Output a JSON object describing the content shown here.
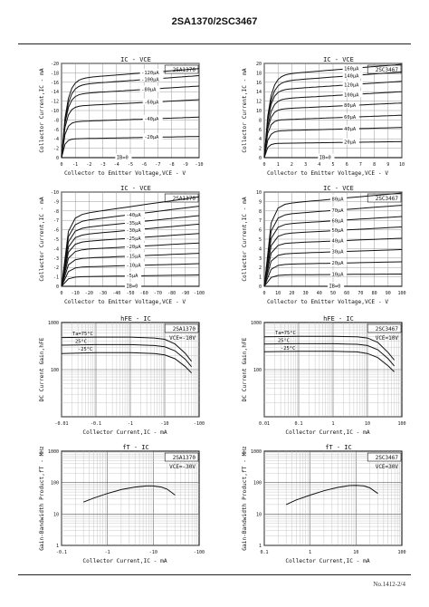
{
  "page": {
    "header_title": "2SA1370/2SC3467",
    "footer_text": "No.1412-2/4"
  },
  "chart_data": [
    {
      "id": "c1",
      "type": "line",
      "device": "2SA1370",
      "title": "IC - VCE",
      "xlabel": "Collector to Emitter Voltage,VCE - V",
      "ylabel": "Collector Current,IC - mA",
      "xlim": [
        0,
        -10
      ],
      "ylim": [
        0,
        -20
      ],
      "xticks": [
        0,
        -1,
        -2,
        -3,
        -4,
        -5,
        -6,
        -7,
        -8,
        -9,
        -10
      ],
      "yticks": [
        0,
        -2,
        -4,
        -6,
        -8,
        -10,
        -12,
        -14,
        -16,
        -18,
        -20
      ],
      "xticklabels": [
        "0",
        "-1",
        "-2",
        "-3",
        "-4",
        "-5",
        "-6",
        "-7",
        "-8",
        "-9",
        "-10"
      ],
      "yticklabels": [
        "0",
        "-2",
        "-4",
        "-6",
        "-8",
        "-10",
        "-12",
        "-14",
        "-16",
        "-18",
        "-20"
      ],
      "grid": true,
      "curve_model": "saturation",
      "series": [
        {
          "name": "-120μA",
          "sat_knee": 0.9,
          "y_at_xmax": -18.9
        },
        {
          "name": "-100μA",
          "sat_knee": 0.9,
          "y_at_xmax": -17.4
        },
        {
          "name": "-80μA",
          "sat_knee": 0.8,
          "y_at_xmax": -15.2
        },
        {
          "name": "-60μA",
          "sat_knee": 0.7,
          "y_at_xmax": -12.3
        },
        {
          "name": "-40μA",
          "sat_knee": 0.6,
          "y_at_xmax": -8.6
        },
        {
          "name": "-20μA",
          "sat_knee": 0.5,
          "y_at_xmax": -4.5
        },
        {
          "name": "IB=0",
          "sat_knee": 0.1,
          "y_at_xmax": 0
        }
      ],
      "label_at_x": [
        -5.8,
        -5.8,
        -5.8,
        -6.0,
        -6.0,
        -6.0,
        -4.0
      ],
      "label_series": [
        0,
        1,
        2,
        3,
        4,
        5,
        6
      ]
    },
    {
      "id": "c2",
      "type": "line",
      "device": "2SC3467",
      "title": "IC - VCE",
      "xlabel": "Collector to Emitter Voltage,VCE - V",
      "ylabel": "Collector Current,IC - mA",
      "xlim": [
        0,
        10
      ],
      "ylim": [
        0,
        20
      ],
      "xticks": [
        0,
        1,
        2,
        3,
        4,
        5,
        6,
        7,
        8,
        9,
        10
      ],
      "yticks": [
        0,
        2,
        4,
        6,
        8,
        10,
        12,
        14,
        16,
        18,
        20
      ],
      "xticklabels": [
        "0",
        "1",
        "2",
        "3",
        "4",
        "5",
        "6",
        "7",
        "8",
        "9",
        "10"
      ],
      "yticklabels": [
        "0",
        "2",
        "4",
        "6",
        "8",
        "10",
        "12",
        "14",
        "16",
        "18",
        "20"
      ],
      "grid": true,
      "curve_model": "saturation",
      "series": [
        {
          "name": "160μA",
          "sat_knee": 0.9,
          "y_at_xmax": 19.8
        },
        {
          "name": "140μA",
          "sat_knee": 0.9,
          "y_at_xmax": 18.2
        },
        {
          "name": "120μA",
          "sat_knee": 0.8,
          "y_at_xmax": 16.2
        },
        {
          "name": "100μA",
          "sat_knee": 0.8,
          "y_at_xmax": 14.0
        },
        {
          "name": "80μA",
          "sat_knee": 0.7,
          "y_at_xmax": 11.6
        },
        {
          "name": "60μA",
          "sat_knee": 0.6,
          "y_at_xmax": 9.0
        },
        {
          "name": "40μA",
          "sat_knee": 0.6,
          "y_at_xmax": 6.4
        },
        {
          "name": "20μA",
          "sat_knee": 0.5,
          "y_at_xmax": 3.4
        },
        {
          "name": "IB=0",
          "sat_knee": 0.1,
          "y_at_xmax": 0
        }
      ],
      "label_at_x": [
        5.8,
        5.8,
        5.8,
        5.8,
        5.8,
        5.8,
        5.8,
        5.8,
        4.0
      ],
      "label_series": [
        0,
        1,
        2,
        3,
        4,
        5,
        6,
        7,
        8
      ]
    },
    {
      "id": "c3",
      "type": "line",
      "device": "2SA1370",
      "title": "IC - VCE",
      "xlabel": "Collector to Emitter Voltage,VCE - V",
      "ylabel": "Collector Current,IC - mA",
      "xlim": [
        0,
        -100
      ],
      "ylim": [
        0,
        -10
      ],
      "xticks": [
        0,
        -10,
        -20,
        -30,
        -40,
        -50,
        -60,
        -70,
        -80,
        -90,
        -100
      ],
      "yticks": [
        0,
        -1,
        -2,
        -3,
        -4,
        -5,
        -6,
        -7,
        -8,
        -9,
        -10
      ],
      "xticklabels": [
        "0",
        "-10",
        "-20",
        "-30",
        "-40",
        "-50",
        "-60",
        "-70",
        "-80",
        "-90",
        "-100"
      ],
      "yticklabels": [
        "0",
        "-1",
        "-2",
        "-3",
        "-4",
        "-5",
        "-6",
        "-7",
        "-8",
        "-9",
        "-10"
      ],
      "grid": true,
      "curve_model": "linear",
      "series": [
        {
          "name": "",
          "y_start": -7.4,
          "y_end": -9.5
        },
        {
          "name": "-40μA",
          "y_start": -6.7,
          "y_end": -8.5
        },
        {
          "name": "-35μA",
          "y_start": -6.0,
          "y_end": -7.5
        },
        {
          "name": "-30μA",
          "y_start": -5.3,
          "y_end": -6.6
        },
        {
          "name": "-25μA",
          "y_start": -4.6,
          "y_end": -5.6
        },
        {
          "name": "-20μA",
          "y_start": -3.8,
          "y_end": -4.6
        },
        {
          "name": "-15μA",
          "y_start": -2.9,
          "y_end": -3.5
        },
        {
          "name": "-10μA",
          "y_start": -2.0,
          "y_end": -2.4
        },
        {
          "name": "-5μA",
          "y_start": -1.0,
          "y_end": -1.2
        },
        {
          "name": "IB=0",
          "y_start": 0,
          "y_end": 0
        }
      ],
      "label_at_x": [
        -47,
        -47,
        -47,
        -47,
        -47,
        -47,
        -47,
        -47,
        -47
      ],
      "label_series": [
        1,
        2,
        3,
        4,
        5,
        6,
        7,
        8,
        9
      ]
    },
    {
      "id": "c4",
      "type": "line",
      "device": "2SC3467",
      "title": "IC - VCE",
      "xlabel": "Collector to Emitter Voltage,VCE - V",
      "ylabel": "Collector Current,IC - mA",
      "xlim": [
        0,
        100
      ],
      "ylim": [
        0,
        10
      ],
      "xticks": [
        0,
        10,
        20,
        30,
        40,
        50,
        60,
        70,
        80,
        90,
        100
      ],
      "yticks": [
        0,
        1,
        2,
        3,
        4,
        5,
        6,
        7,
        8,
        9,
        10
      ],
      "xticklabels": [
        "0",
        "10",
        "20",
        "30",
        "40",
        "50",
        "60",
        "70",
        "80",
        "90",
        "100"
      ],
      "yticklabels": [
        "0",
        "1",
        "2",
        "3",
        "4",
        "5",
        "6",
        "7",
        "8",
        "9",
        "10"
      ],
      "grid": true,
      "curve_model": "linear",
      "series": [
        {
          "name": "80μA",
          "y_start": 8.6,
          "y_end": 9.9
        },
        {
          "name": "70μA",
          "y_start": 7.5,
          "y_end": 8.6
        },
        {
          "name": "60μA",
          "y_start": 6.5,
          "y_end": 7.4
        },
        {
          "name": "50μA",
          "y_start": 5.5,
          "y_end": 6.3
        },
        {
          "name": "40μA",
          "y_start": 4.5,
          "y_end": 5.1
        },
        {
          "name": "30μA",
          "y_start": 3.4,
          "y_end": 3.9
        },
        {
          "name": "20μA",
          "y_start": 2.3,
          "y_end": 2.6
        },
        {
          "name": "10μA",
          "y_start": 1.2,
          "y_end": 1.3
        },
        {
          "name": "IB=0",
          "y_start": 0,
          "y_end": 0
        }
      ],
      "label_at_x": [
        49,
        49,
        49,
        49,
        49,
        49,
        49,
        49,
        47
      ],
      "label_series": [
        0,
        1,
        2,
        3,
        4,
        5,
        6,
        7,
        8
      ]
    },
    {
      "id": "c5",
      "type": "line",
      "device": "2SA1370",
      "title": "hFE - IC",
      "condition": "VCE=-10V",
      "xlabel": "Collector Current,IC - mA",
      "ylabel": "DC Current Gain,hFE",
      "xscale": "log",
      "yscale": "log",
      "xlim": [
        -0.01,
        -100
      ],
      "ylim": [
        10,
        1000
      ],
      "xticklabels": [
        "-0.01",
        "-0.1",
        "-1",
        "-10",
        "-100"
      ],
      "yticklabels": [
        "",
        "100",
        "1000"
      ],
      "grid": true,
      "series": [
        {
          "name": "Ta=75°C",
          "x": [
            -0.01,
            -0.1,
            -1,
            -5,
            -10,
            -20,
            -40,
            -60
          ],
          "y": [
            480,
            490,
            490,
            470,
            440,
            350,
            220,
            150
          ]
        },
        {
          "name": "25°C",
          "x": [
            -0.01,
            -0.1,
            -1,
            -5,
            -10,
            -20,
            -40,
            -60
          ],
          "y": [
            330,
            340,
            340,
            325,
            305,
            250,
            165,
            115
          ]
        },
        {
          "name": "-25°C",
          "x": [
            -0.01,
            -0.1,
            -1,
            -5,
            -10,
            -20,
            -40,
            -60
          ],
          "y": [
            220,
            230,
            230,
            220,
            205,
            170,
            115,
            85
          ]
        }
      ]
    },
    {
      "id": "c6",
      "type": "line",
      "device": "2SC3467",
      "title": "hFE - IC",
      "condition": "VCE=10V",
      "xlabel": "Collector Current,IC - mA",
      "ylabel": "DC Current Gain,hFE",
      "xscale": "log",
      "yscale": "log",
      "xlim": [
        0.01,
        100
      ],
      "ylim": [
        10,
        1000
      ],
      "xticklabels": [
        "0.01",
        "0.1",
        "1",
        "10",
        "100"
      ],
      "yticklabels": [
        "",
        "100",
        "1000"
      ],
      "grid": true,
      "series": [
        {
          "name": "Ta=75°C",
          "x": [
            0.01,
            0.1,
            1,
            5,
            10,
            20,
            40,
            60
          ],
          "y": [
            500,
            510,
            510,
            500,
            470,
            380,
            230,
            160
          ]
        },
        {
          "name": "25°C",
          "x": [
            0.01,
            0.1,
            1,
            5,
            10,
            20,
            40,
            60
          ],
          "y": [
            350,
            355,
            355,
            345,
            325,
            265,
            170,
            120
          ]
        },
        {
          "name": "-25°C",
          "x": [
            0.01,
            0.1,
            1,
            5,
            10,
            20,
            40,
            60
          ],
          "y": [
            240,
            245,
            245,
            238,
            220,
            180,
            120,
            90
          ]
        }
      ]
    },
    {
      "id": "c7",
      "type": "line",
      "device": "2SA1370",
      "title": "fT - IC",
      "condition": "VCE=-30V",
      "xlabel": "Collector Current,IC - mA",
      "ylabel": "Gain-Bandwidth Product,fT - MHz",
      "xscale": "log",
      "yscale": "log",
      "xlim": [
        -0.1,
        -100
      ],
      "ylim": [
        1,
        1000
      ],
      "xticklabels": [
        "-0.1",
        "-1",
        "-10",
        "-100"
      ],
      "yticklabels": [
        "1",
        "10",
        "100",
        "1000"
      ],
      "grid": true,
      "series": [
        {
          "name": "",
          "x": [
            -0.3,
            -0.5,
            -1,
            -2,
            -4,
            -7,
            -10,
            -15,
            -20,
            -30
          ],
          "y": [
            24,
            32,
            45,
            60,
            72,
            78,
            78,
            72,
            62,
            40
          ]
        }
      ]
    },
    {
      "id": "c8",
      "type": "line",
      "device": "2SC3467",
      "title": "fT - IC",
      "condition": "VCE=30V",
      "xlabel": "Collector Current,IC - mA",
      "ylabel": "Gain-Bandwidth Product,fT - MHz",
      "xscale": "log",
      "yscale": "log",
      "xlim": [
        0.1,
        100
      ],
      "ylim": [
        1,
        1000
      ],
      "xticklabels": [
        "0.1",
        "1",
        "10",
        "100"
      ],
      "yticklabels": [
        "1",
        "10",
        "100",
        "1000"
      ],
      "grid": true,
      "series": [
        {
          "name": "",
          "x": [
            0.3,
            0.5,
            1,
            2,
            4,
            7,
            10,
            15,
            20,
            30
          ],
          "y": [
            20,
            28,
            40,
            55,
            70,
            80,
            82,
            78,
            68,
            45
          ]
        }
      ]
    }
  ]
}
